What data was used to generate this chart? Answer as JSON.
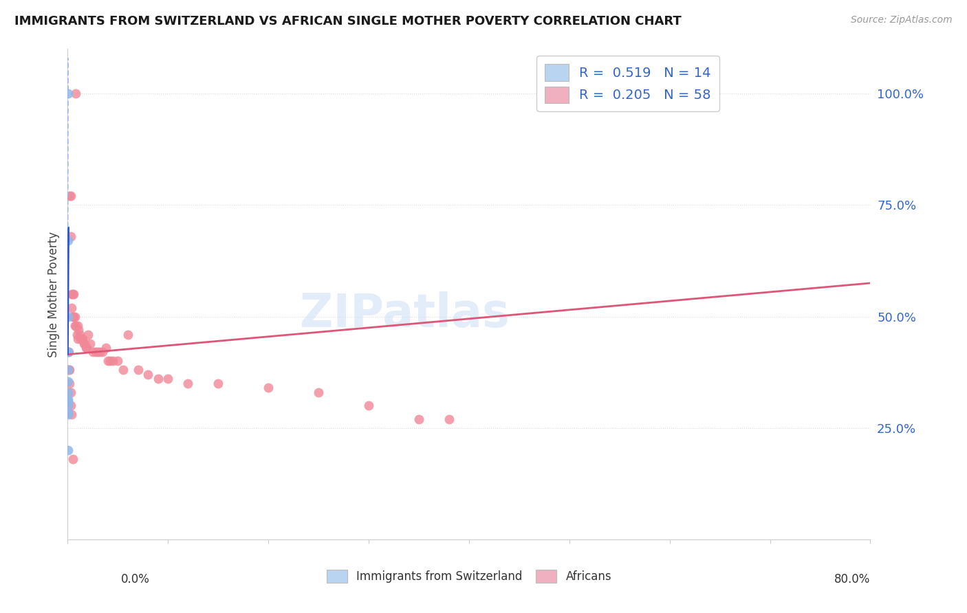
{
  "title": "IMMIGRANTS FROM SWITZERLAND VS AFRICAN SINGLE MOTHER POVERTY CORRELATION CHART",
  "source": "Source: ZipAtlas.com",
  "ylabel": "Single Mother Poverty",
  "watermark": "ZIPatlas",
  "blue_fill": "#b8d4f0",
  "blue_dot": "#90b8e8",
  "blue_line": "#3355cc",
  "blue_dash": "#99bbee",
  "pink_fill": "#f0b0c0",
  "pink_dot": "#f08898",
  "pink_line": "#dd5577",
  "text_blue": "#3366cc",
  "grid_color": "#d8d8e0",
  "xmin": 0.0,
  "xmax": 0.8,
  "ymin": 0.0,
  "ymax": 1.1,
  "swiss_x": [
    0.0005,
    0.0005,
    0.0005,
    0.0005,
    0.0005,
    0.0005,
    0.0005,
    0.0005,
    0.0005,
    0.0005,
    0.0005,
    0.0005,
    0.0005,
    0.0005
  ],
  "swiss_y": [
    1.0,
    0.67,
    0.5,
    0.42,
    0.42,
    0.38,
    0.355,
    0.33,
    0.315,
    0.31,
    0.3,
    0.285,
    0.28,
    0.2
  ],
  "african_x": [
    0.008,
    0.002,
    0.003,
    0.003,
    0.004,
    0.004,
    0.005,
    0.005,
    0.006,
    0.006,
    0.007,
    0.007,
    0.008,
    0.009,
    0.01,
    0.01,
    0.011,
    0.012,
    0.013,
    0.014,
    0.015,
    0.016,
    0.017,
    0.018,
    0.019,
    0.02,
    0.022,
    0.025,
    0.028,
    0.03,
    0.032,
    0.035,
    0.038,
    0.04,
    0.042,
    0.045,
    0.05,
    0.055,
    0.06,
    0.07,
    0.08,
    0.09,
    0.1,
    0.12,
    0.15,
    0.2,
    0.25,
    0.3,
    0.35,
    0.38,
    0.001,
    0.001,
    0.002,
    0.002,
    0.003,
    0.003,
    0.004,
    0.005
  ],
  "african_y": [
    1.0,
    0.77,
    0.77,
    0.68,
    0.55,
    0.52,
    0.55,
    0.5,
    0.55,
    0.5,
    0.5,
    0.48,
    0.48,
    0.46,
    0.48,
    0.45,
    0.47,
    0.46,
    0.45,
    0.45,
    0.45,
    0.44,
    0.44,
    0.43,
    0.43,
    0.46,
    0.44,
    0.42,
    0.42,
    0.42,
    0.42,
    0.42,
    0.43,
    0.4,
    0.4,
    0.4,
    0.4,
    0.38,
    0.46,
    0.38,
    0.37,
    0.36,
    0.36,
    0.35,
    0.35,
    0.34,
    0.33,
    0.3,
    0.27,
    0.27,
    0.42,
    0.38,
    0.38,
    0.35,
    0.33,
    0.3,
    0.28,
    0.18
  ]
}
